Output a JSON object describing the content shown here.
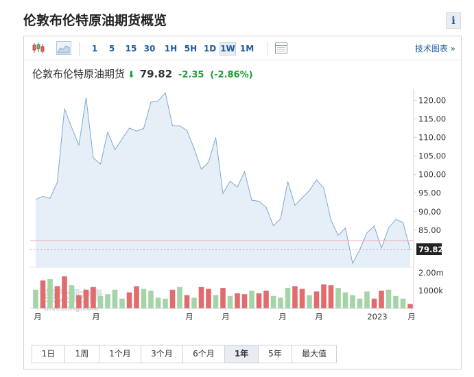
{
  "page": {
    "title": "伦敦布伦特原油期货概览",
    "info_label": "i"
  },
  "toolbar": {
    "intervals": [
      "1",
      "5",
      "15",
      "30",
      "1H",
      "5H",
      "1D",
      "1W",
      "1M"
    ],
    "active_interval": "1W",
    "tech_chart_link": "技术图表 »"
  },
  "quote": {
    "name": "伦敦布伦特原油期货",
    "price": "79.82",
    "change": "-2.35",
    "change_pct": "(-2.86%)"
  },
  "watermark": {
    "text_cn": "英为财情",
    "text_en": "Investing.com"
  },
  "ranges": {
    "items": [
      "1日",
      "1周",
      "1个月",
      "3个月",
      "6个月",
      "1年",
      "5年",
      "最大值"
    ],
    "active": "1年"
  },
  "colors": {
    "line": "#7ea9d1",
    "area": "#e6eef7",
    "volume_up": "#a5d4a8",
    "volume_down": "#e06c6e",
    "last_price_bg": "#222222",
    "ref_line": "#f0a8a8"
  },
  "chart_data": {
    "type": "area",
    "title": "",
    "ylim": [
      75,
      123
    ],
    "y_ticks": [
      "120.00",
      "115.00",
      "110.00",
      "105.00",
      "100.00",
      "95.00",
      "90.00",
      "85.00"
    ],
    "x_ticks": [
      "月",
      "月",
      "月",
      "月",
      "月",
      "月",
      "2023",
      "月"
    ],
    "last_price_label": "79.82",
    "reference_price": 82.17,
    "series": [
      {
        "values": [
          93.3,
          94.1,
          93.6,
          97.9,
          117.7,
          112.7,
          107.9,
          120.7,
          104.5,
          102.8,
          111.4,
          106.7,
          109.6,
          112.5,
          111.7,
          112.4,
          119.5,
          119.8,
          122.0,
          113.1,
          113.1,
          111.9,
          107.0,
          101.4,
          103.3,
          110.0,
          94.9,
          98.2,
          96.6,
          100.8,
          93.1,
          92.8,
          91.2,
          86.2,
          88.1,
          98.1,
          91.7,
          93.7,
          95.7,
          98.6,
          96.3,
          87.8,
          83.6,
          85.6,
          76.1,
          79.8,
          84.3,
          86.1,
          80.2,
          85.6,
          87.9,
          87.1,
          79.8
        ]
      }
    ],
    "volume": {
      "y_ticks": [
        "2.00m",
        "1000k"
      ],
      "values": [
        1.05,
        1.57,
        1.65,
        1.25,
        1.8,
        1.3,
        0.75,
        1.05,
        1.2,
        0.7,
        0.8,
        1.05,
        0.55,
        0.9,
        1.25,
        1.1,
        1.0,
        0.6,
        0.55,
        1.05,
        1.2,
        0.75,
        0.6,
        1.2,
        1.1,
        0.75,
        1.15,
        0.7,
        0.85,
        0.8,
        1.0,
        0.85,
        1.0,
        0.7,
        0.6,
        1.15,
        1.25,
        1.1,
        0.75,
        0.95,
        1.35,
        1.3,
        1.15,
        0.9,
        0.75,
        0.55,
        0.95,
        0.55,
        1.0,
        1.05,
        0.7,
        0.55,
        0.25
      ],
      "up": [
        1,
        0,
        1,
        0,
        0,
        1,
        0,
        0,
        0,
        1,
        1,
        1,
        1,
        0,
        0,
        1,
        1,
        1,
        1,
        0,
        1,
        0,
        1,
        0,
        0,
        1,
        0,
        1,
        0,
        0,
        1,
        0,
        0,
        1,
        1,
        1,
        0,
        0,
        1,
        0,
        0,
        0,
        1,
        1,
        1,
        1,
        1,
        0,
        0,
        1,
        1,
        1,
        0
      ]
    }
  }
}
